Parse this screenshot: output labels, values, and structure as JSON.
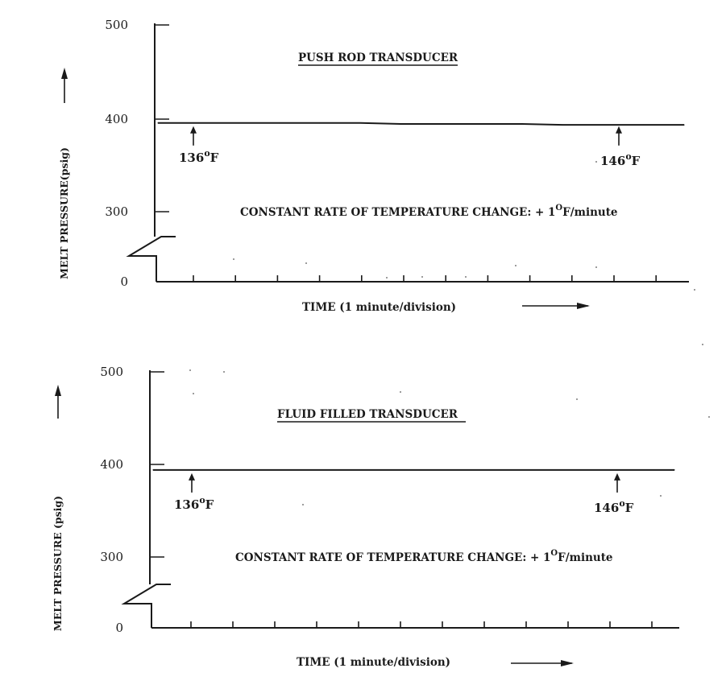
{
  "chart_data": [
    {
      "type": "line",
      "title": "PUSH ROD TRANSDUCER",
      "ylabel": "MELT PRESSURE(psig) ——→",
      "xlabel": "TIME  (1 minute/division)  ——→",
      "ylim": [
        0,
        500
      ],
      "y_axis_break": true,
      "y_ticks": [
        "500",
        "400",
        "300",
        "0"
      ],
      "x_divisions": 12,
      "series": [
        {
          "x": [
            0,
            1,
            2,
            3,
            4,
            5,
            6,
            7,
            8,
            9,
            10,
            11,
            12,
            13
          ],
          "values": [
            395,
            395,
            395,
            395,
            395,
            395,
            394,
            394,
            394,
            394,
            393,
            393,
            393,
            393
          ]
        }
      ],
      "annotations": [
        {
          "x": 1,
          "base": "136",
          "sup": "o",
          "unit": "F"
        },
        {
          "x": 11,
          "base": "146",
          "sup": "o",
          "unit": "F"
        }
      ],
      "note": {
        "base": "CONSTANT RATE OF TEMPERATURE CHANGE: + 1",
        "sup": "O",
        "unit": "F/minute"
      }
    },
    {
      "type": "line",
      "title": "FLUID FILLED TRANSDUCER",
      "ylabel": "MELT PRESSURE (psig) ——→",
      "xlabel": "TIME  (1 minute/division)  ——→",
      "ylim": [
        0,
        500
      ],
      "y_axis_break": true,
      "y_ticks": [
        "500",
        "400",
        "300",
        "0"
      ],
      "x_divisions": 12,
      "series": [
        {
          "x": [
            0,
            1,
            2,
            3,
            4,
            5,
            6,
            7,
            8,
            9,
            10,
            11,
            12,
            13
          ],
          "values": [
            394,
            394,
            394,
            394,
            394,
            394,
            394,
            394,
            394,
            394,
            394,
            394,
            394,
            394
          ]
        }
      ],
      "annotations": [
        {
          "x": 1,
          "base": "136",
          "sup": "o",
          "unit": "F"
        },
        {
          "x": 11,
          "base": "146",
          "sup": "o",
          "unit": "F"
        }
      ],
      "note": {
        "base": "CONSTANT RATE OF TEMPERATURE CHANGE: + 1",
        "sup": "O",
        "unit": "F/minute"
      }
    }
  ]
}
